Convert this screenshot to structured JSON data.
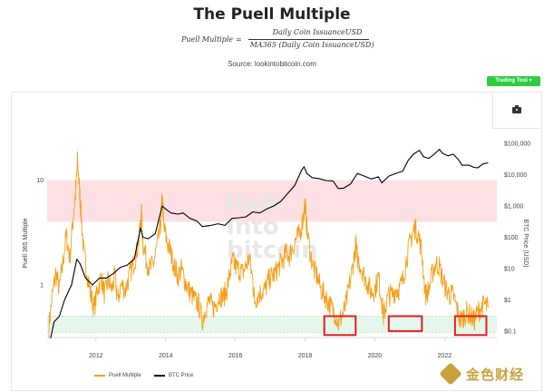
{
  "header": {
    "title": "The Puell Multiple",
    "formula_lhs": "Puell Multiple",
    "formula_eq": "=",
    "formula_numerator": "Daily Coin IssuanceUSD",
    "formula_denominator": "MA365 (Daily Coin IssuanceUSD)",
    "source": "Source: lookintobitcoin.com"
  },
  "toolbar": {
    "trading_tool_label": "Trading Tool ▾",
    "camera_icon": "camera-icon"
  },
  "watermark": [
    "look",
    "into",
    "bitcoin"
  ],
  "logo": {
    "icon": "diamond-logo-icon",
    "text": "金色财经"
  },
  "colors": {
    "puell": "#f5a01a",
    "btc": "#000000",
    "red_band": "#fde0e3",
    "green_band": "#e4f7ea",
    "highlight_box": "#e41e26",
    "trading_tool": "#2ecc40"
  },
  "chart_data": {
    "type": "line",
    "title": "The Puell Multiple",
    "ylabel_left": "Puell 365 Multiple",
    "ylabel_right": "BTC Price (USD)",
    "x_range": [
      2010.6,
      2023.5
    ],
    "x_ticks": [
      "2012",
      "2014",
      "2016",
      "2018",
      "2020",
      "2022"
    ],
    "left_axis": {
      "scale": "log",
      "range": [
        0.3,
        20
      ],
      "ticks": [
        "10",
        "1"
      ]
    },
    "right_axis": {
      "scale": "log",
      "range": [
        0.03,
        200000
      ],
      "ticks": [
        "$100,000",
        "$10,000",
        "$1,000",
        "$100",
        "$10",
        "$1",
        "$0.1"
      ]
    },
    "bands": [
      {
        "name": "red",
        "from": 4,
        "to": 10
      },
      {
        "name": "green",
        "from": 0.35,
        "to": 0.5
      }
    ],
    "highlight_boxes": [
      {
        "x": [
          2018.55,
          2019.45
        ],
        "y": [
          0.33,
          0.5
        ]
      },
      {
        "x": [
          2020.4,
          2021.35
        ],
        "y": [
          0.36,
          0.5
        ]
      },
      {
        "x": [
          2022.3,
          2023.2
        ],
        "y": [
          0.33,
          0.5
        ]
      }
    ],
    "legend": [
      "Puell Multiple",
      "BTC Price"
    ],
    "series": [
      {
        "name": "Puell Multiple",
        "axis": "left",
        "points": [
          [
            2010.65,
            0.4
          ],
          [
            2010.75,
            0.8
          ],
          [
            2010.85,
            1.3
          ],
          [
            2010.95,
            0.9
          ],
          [
            2011.05,
            1.6
          ],
          [
            2011.15,
            3.0
          ],
          [
            2011.25,
            1.8
          ],
          [
            2011.35,
            4.5
          ],
          [
            2011.42,
            8.0
          ],
          [
            2011.47,
            15.0
          ],
          [
            2011.52,
            9.0
          ],
          [
            2011.57,
            5.0
          ],
          [
            2011.65,
            2.0
          ],
          [
            2011.75,
            1.3
          ],
          [
            2011.85,
            0.8
          ],
          [
            2011.95,
            0.6
          ],
          [
            2012.05,
            0.9
          ],
          [
            2012.15,
            1.2
          ],
          [
            2012.25,
            0.8
          ],
          [
            2012.35,
            1.1
          ],
          [
            2012.45,
            0.9
          ],
          [
            2012.55,
            1.2
          ],
          [
            2012.62,
            0.7
          ],
          [
            2012.72,
            1.0
          ],
          [
            2012.85,
            0.9
          ],
          [
            2012.95,
            1.2
          ],
          [
            2013.05,
            1.5
          ],
          [
            2013.15,
            1.9
          ],
          [
            2013.25,
            3.0
          ],
          [
            2013.3,
            5.0
          ],
          [
            2013.35,
            2.5
          ],
          [
            2013.45,
            1.7
          ],
          [
            2013.55,
            1.4
          ],
          [
            2013.65,
            1.6
          ],
          [
            2013.75,
            2.3
          ],
          [
            2013.85,
            3.5
          ],
          [
            2013.9,
            7.0
          ],
          [
            2013.95,
            3.5
          ],
          [
            2014.05,
            2.5
          ],
          [
            2014.15,
            2.0
          ],
          [
            2014.25,
            1.5
          ],
          [
            2014.35,
            1.2
          ],
          [
            2014.45,
            1.4
          ],
          [
            2014.55,
            1.1
          ],
          [
            2014.65,
            0.9
          ],
          [
            2014.75,
            0.8
          ],
          [
            2014.85,
            0.7
          ],
          [
            2014.95,
            0.65
          ],
          [
            2015.05,
            0.45
          ],
          [
            2015.15,
            0.6
          ],
          [
            2015.25,
            0.7
          ],
          [
            2015.35,
            0.6
          ],
          [
            2015.45,
            0.65
          ],
          [
            2015.55,
            0.8
          ],
          [
            2015.65,
            0.75
          ],
          [
            2015.75,
            0.9
          ],
          [
            2015.85,
            1.3
          ],
          [
            2015.92,
            1.7
          ],
          [
            2016.0,
            1.5
          ],
          [
            2016.1,
            1.4
          ],
          [
            2016.2,
            1.3
          ],
          [
            2016.3,
            1.5
          ],
          [
            2016.4,
            1.8
          ],
          [
            2016.5,
            1.1
          ],
          [
            2016.55,
            0.7
          ],
          [
            2016.65,
            0.8
          ],
          [
            2016.75,
            0.85
          ],
          [
            2016.85,
            0.9
          ],
          [
            2016.95,
            1.1
          ],
          [
            2017.05,
            1.2
          ],
          [
            2017.15,
            1.3
          ],
          [
            2017.25,
            1.5
          ],
          [
            2017.35,
            1.7
          ],
          [
            2017.45,
            2.0
          ],
          [
            2017.55,
            1.9
          ],
          [
            2017.65,
            2.3
          ],
          [
            2017.75,
            2.8
          ],
          [
            2017.85,
            3.0
          ],
          [
            2017.95,
            4.5
          ],
          [
            2018.0,
            6.0
          ],
          [
            2018.05,
            3.5
          ],
          [
            2018.15,
            2.0
          ],
          [
            2018.25,
            1.4
          ],
          [
            2018.35,
            1.2
          ],
          [
            2018.45,
            0.9
          ],
          [
            2018.55,
            0.8
          ],
          [
            2018.65,
            0.7
          ],
          [
            2018.75,
            0.6
          ],
          [
            2018.85,
            0.55
          ],
          [
            2018.95,
            0.42
          ],
          [
            2019.05,
            0.5
          ],
          [
            2019.15,
            0.6
          ],
          [
            2019.25,
            0.9
          ],
          [
            2019.35,
            1.4
          ],
          [
            2019.45,
            2.4
          ],
          [
            2019.5,
            1.8
          ],
          [
            2019.6,
            1.5
          ],
          [
            2019.7,
            1.2
          ],
          [
            2019.8,
            1.0
          ],
          [
            2019.9,
            0.85
          ],
          [
            2020.0,
            0.9
          ],
          [
            2020.1,
            1.2
          ],
          [
            2020.2,
            0.7
          ],
          [
            2020.25,
            0.5
          ],
          [
            2020.3,
            0.6
          ],
          [
            2020.4,
            0.8
          ],
          [
            2020.5,
            0.8
          ],
          [
            2020.6,
            0.9
          ],
          [
            2020.7,
            0.9
          ],
          [
            2020.8,
            1.1
          ],
          [
            2020.9,
            1.7
          ],
          [
            2021.0,
            2.5
          ],
          [
            2021.1,
            3.3
          ],
          [
            2021.15,
            3.5
          ],
          [
            2021.25,
            3.0
          ],
          [
            2021.35,
            2.0
          ],
          [
            2021.45,
            0.8
          ],
          [
            2021.55,
            0.9
          ],
          [
            2021.65,
            1.3
          ],
          [
            2021.75,
            1.6
          ],
          [
            2021.85,
            1.5
          ],
          [
            2021.95,
            1.1
          ],
          [
            2022.05,
            0.9
          ],
          [
            2022.15,
            0.8
          ],
          [
            2022.25,
            0.8
          ],
          [
            2022.35,
            0.6
          ],
          [
            2022.45,
            0.45
          ],
          [
            2022.55,
            0.5
          ],
          [
            2022.65,
            0.55
          ],
          [
            2022.75,
            0.5
          ],
          [
            2022.85,
            0.45
          ],
          [
            2022.95,
            0.55
          ],
          [
            2023.05,
            0.6
          ],
          [
            2023.15,
            0.65
          ],
          [
            2023.25,
            0.6
          ]
        ]
      },
      {
        "name": "BTC Price",
        "axis": "right",
        "points": [
          [
            2010.7,
            0.06
          ],
          [
            2010.8,
            0.2
          ],
          [
            2010.95,
            0.3
          ],
          [
            2011.1,
            1.0
          ],
          [
            2011.3,
            3.0
          ],
          [
            2011.45,
            20.0
          ],
          [
            2011.55,
            14.0
          ],
          [
            2011.7,
            5.0
          ],
          [
            2011.9,
            3.0
          ],
          [
            2012.1,
            5.0
          ],
          [
            2012.3,
            5.0
          ],
          [
            2012.5,
            7.0
          ],
          [
            2012.7,
            11.0
          ],
          [
            2012.9,
            13.0
          ],
          [
            2013.1,
            20.0
          ],
          [
            2013.28,
            200.0
          ],
          [
            2013.35,
            100.0
          ],
          [
            2013.5,
            90.0
          ],
          [
            2013.7,
            130.0
          ],
          [
            2013.9,
            1000.0
          ],
          [
            2014.0,
            800.0
          ],
          [
            2014.15,
            600.0
          ],
          [
            2014.35,
            550.0
          ],
          [
            2014.5,
            600.0
          ],
          [
            2014.7,
            400.0
          ],
          [
            2014.9,
            330.0
          ],
          [
            2015.05,
            220.0
          ],
          [
            2015.3,
            240.0
          ],
          [
            2015.5,
            270.0
          ],
          [
            2015.7,
            240.0
          ],
          [
            2015.9,
            400.0
          ],
          [
            2016.1,
            420.0
          ],
          [
            2016.3,
            450.0
          ],
          [
            2016.5,
            650.0
          ],
          [
            2016.7,
            600.0
          ],
          [
            2016.9,
            800.0
          ],
          [
            2017.1,
            1000.0
          ],
          [
            2017.3,
            1400.0
          ],
          [
            2017.5,
            2500.0
          ],
          [
            2017.7,
            4500.0
          ],
          [
            2017.9,
            14000.0
          ],
          [
            2017.97,
            18000.0
          ],
          [
            2018.05,
            11000.0
          ],
          [
            2018.2,
            8000.0
          ],
          [
            2018.4,
            7500.0
          ],
          [
            2018.6,
            6500.0
          ],
          [
            2018.8,
            6300.0
          ],
          [
            2018.95,
            3600.0
          ],
          [
            2019.1,
            3700.0
          ],
          [
            2019.3,
            5000.0
          ],
          [
            2019.5,
            11000.0
          ],
          [
            2019.7,
            9000.0
          ],
          [
            2019.9,
            7300.0
          ],
          [
            2020.1,
            8500.0
          ],
          [
            2020.2,
            5500.0
          ],
          [
            2020.4,
            9000.0
          ],
          [
            2020.6,
            11000.0
          ],
          [
            2020.8,
            13000.0
          ],
          [
            2020.95,
            28000.0
          ],
          [
            2021.1,
            45000.0
          ],
          [
            2021.28,
            60000.0
          ],
          [
            2021.4,
            37000.0
          ],
          [
            2021.55,
            33000.0
          ],
          [
            2021.7,
            45000.0
          ],
          [
            2021.85,
            65000.0
          ],
          [
            2021.95,
            47000.0
          ],
          [
            2022.1,
            40000.0
          ],
          [
            2022.25,
            45000.0
          ],
          [
            2022.4,
            30000.0
          ],
          [
            2022.5,
            20000.0
          ],
          [
            2022.7,
            20000.0
          ],
          [
            2022.85,
            17000.0
          ],
          [
            2022.95,
            16500.0
          ],
          [
            2023.1,
            22000.0
          ],
          [
            2023.25,
            24000.0
          ]
        ]
      }
    ]
  }
}
